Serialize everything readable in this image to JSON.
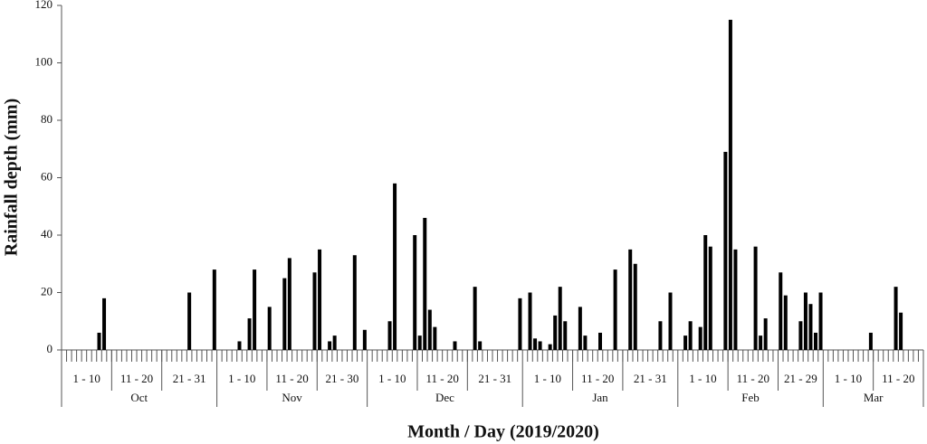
{
  "chart_data": {
    "type": "bar",
    "y_label": "Rainfall depth  (mm)",
    "x_label": "Month / Day (2019/2020)",
    "ylim": [
      0,
      120
    ],
    "yticks": [
      0,
      20,
      40,
      60,
      80,
      100,
      120
    ],
    "color": "#000000",
    "months": [
      {
        "name": "Oct",
        "dekads": [
          "1 - 10",
          "11 - 20",
          "21 - 31"
        ],
        "values": [
          0,
          0,
          0,
          0,
          0,
          0,
          0,
          6,
          18,
          0,
          0,
          0,
          0,
          0,
          0,
          0,
          0,
          0,
          0,
          0,
          0,
          0,
          0,
          0,
          0,
          20,
          0,
          0,
          0,
          0,
          28
        ]
      },
      {
        "name": "Nov",
        "dekads": [
          "1 - 10",
          "11 - 20",
          "21 - 30"
        ],
        "values": [
          0,
          0,
          0,
          0,
          3,
          0,
          11,
          28,
          0,
          0,
          15,
          0,
          0,
          25,
          32,
          0,
          0,
          0,
          0,
          27,
          35,
          0,
          3,
          5,
          0,
          0,
          0,
          33,
          0,
          7
        ]
      },
      {
        "name": "Dec",
        "dekads": [
          "1 - 10",
          "11 - 20",
          "21 - 31"
        ],
        "values": [
          0,
          0,
          0,
          0,
          10,
          58,
          0,
          0,
          0,
          40,
          5,
          46,
          14,
          8,
          0,
          0,
          0,
          3,
          0,
          0,
          0,
          22,
          3,
          0,
          0,
          0,
          0,
          0,
          0,
          0,
          18
        ]
      },
      {
        "name": "Jan",
        "dekads": [
          "1 - 10",
          "11 - 20",
          "21 - 31"
        ],
        "values": [
          0,
          20,
          4,
          3,
          0,
          2,
          12,
          22,
          10,
          0,
          0,
          15,
          5,
          0,
          0,
          6,
          0,
          0,
          28,
          0,
          0,
          35,
          30,
          0,
          0,
          0,
          0,
          10,
          0,
          20,
          0
        ]
      },
      {
        "name": "Feb",
        "dekads": [
          "1 - 10",
          "11 - 20",
          "21 - 29"
        ],
        "values": [
          0,
          5,
          10,
          0,
          8,
          40,
          36,
          0,
          0,
          69,
          115,
          35,
          0,
          0,
          0,
          36,
          5,
          11,
          0,
          0,
          27,
          19,
          0,
          0,
          10,
          20,
          16,
          6,
          20
        ]
      },
      {
        "name": "Mar",
        "dekads": [
          "1 - 10",
          "11 - 20"
        ],
        "values": [
          0,
          0,
          0,
          0,
          0,
          0,
          0,
          0,
          0,
          6,
          0,
          0,
          0,
          0,
          22,
          13,
          0,
          0,
          0,
          0
        ]
      }
    ]
  }
}
